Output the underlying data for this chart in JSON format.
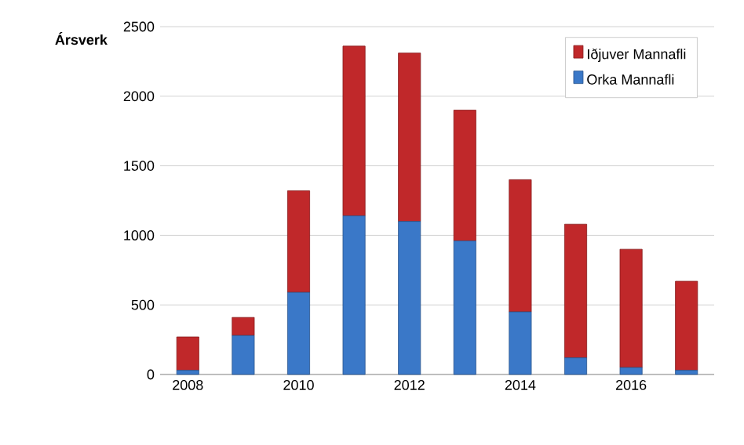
{
  "chart_data": {
    "type": "bar",
    "stacked": true,
    "ylabel": "Ársverk",
    "x": [
      2008,
      2009,
      2010,
      2011,
      2012,
      2013,
      2014,
      2015,
      2016,
      2017
    ],
    "series": [
      {
        "name": "Orka Mannafli",
        "color": "#3a78c8",
        "values": [
          30,
          280,
          590,
          1140,
          1100,
          960,
          450,
          120,
          50,
          30
        ]
      },
      {
        "name": "Iðjuver Mannafli",
        "color": "#c0282a",
        "values": [
          240,
          130,
          730,
          1220,
          1210,
          940,
          950,
          960,
          850,
          640
        ]
      }
    ],
    "xlim": [
      2007.5,
      2017.5
    ],
    "xticks": [
      2008,
      2010,
      2012,
      2014,
      2016
    ],
    "ylim": [
      0,
      2500
    ],
    "yticks": [
      0,
      500,
      1000,
      1500,
      2000,
      2500
    ],
    "grid": "y",
    "legend": "top right"
  }
}
